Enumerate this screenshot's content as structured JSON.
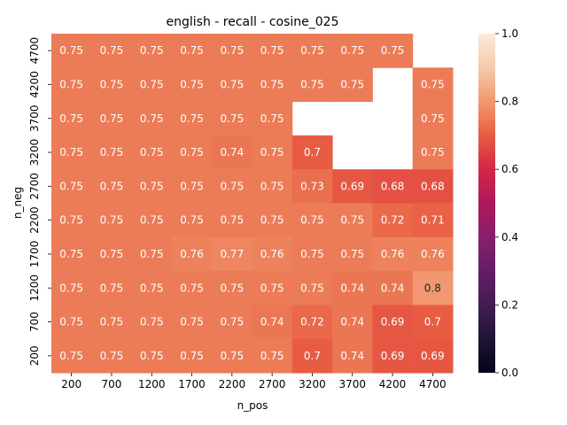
{
  "chart_data": {
    "type": "heatmap",
    "title": "english - recall - cosine_025",
    "xlabel": "n_pos",
    "ylabel": "n_neg",
    "x_categories": [
      "200",
      "700",
      "1200",
      "1700",
      "2200",
      "2700",
      "3200",
      "3700",
      "4200",
      "4700"
    ],
    "y_categories": [
      "4700",
      "4200",
      "3700",
      "3200",
      "2700",
      "2200",
      "1700",
      "1200",
      "700",
      "200"
    ],
    "values": [
      [
        0.75,
        0.75,
        0.75,
        0.75,
        0.75,
        0.75,
        0.75,
        0.75,
        0.75,
        null
      ],
      [
        0.75,
        0.75,
        0.75,
        0.75,
        0.75,
        0.75,
        0.75,
        0.75,
        null,
        0.75
      ],
      [
        0.75,
        0.75,
        0.75,
        0.75,
        0.75,
        0.75,
        null,
        null,
        null,
        0.75
      ],
      [
        0.75,
        0.75,
        0.75,
        0.75,
        0.74,
        0.75,
        0.7,
        null,
        null,
        0.75
      ],
      [
        0.75,
        0.75,
        0.75,
        0.75,
        0.75,
        0.75,
        0.73,
        0.69,
        0.68,
        0.68
      ],
      [
        0.75,
        0.75,
        0.75,
        0.75,
        0.75,
        0.75,
        0.75,
        0.75,
        0.72,
        0.71
      ],
      [
        0.75,
        0.75,
        0.75,
        0.76,
        0.77,
        0.76,
        0.75,
        0.75,
        0.76,
        0.76
      ],
      [
        0.75,
        0.75,
        0.75,
        0.75,
        0.75,
        0.75,
        0.75,
        0.74,
        0.74,
        0.8
      ],
      [
        0.75,
        0.75,
        0.75,
        0.75,
        0.75,
        0.74,
        0.72,
        0.74,
        0.69,
        0.7
      ],
      [
        0.75,
        0.75,
        0.75,
        0.75,
        0.75,
        0.75,
        0.7,
        0.74,
        0.69,
        0.69
      ]
    ],
    "colorbar": {
      "range": [
        0.0,
        1.0
      ],
      "ticks": [
        "0.0",
        "0.2",
        "0.4",
        "0.6",
        "0.8",
        "1.0"
      ],
      "colormap": "rocket"
    },
    "grid": false,
    "legend": "colorbar-right"
  }
}
